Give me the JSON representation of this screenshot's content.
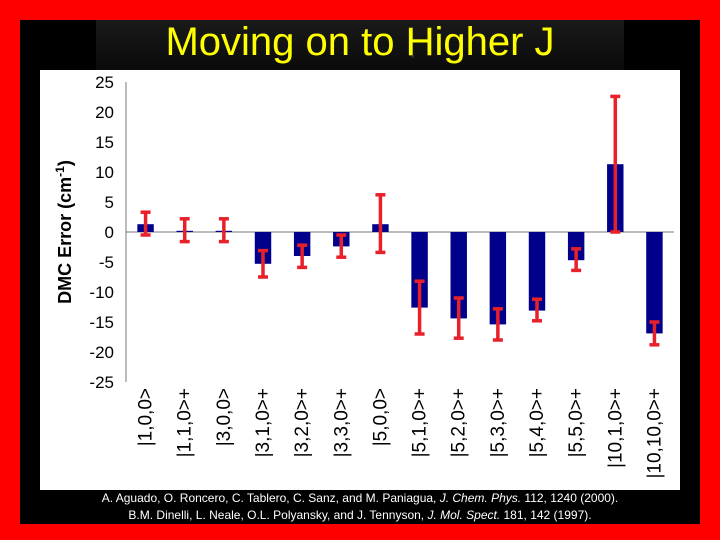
{
  "slide": {
    "title": "Moving on to Higher J",
    "citation_line1_prefix": "A. Aguado, O. Roncero, C. Tablero, C. Sanz, and M. Paniagua, ",
    "citation_line1_journal": "J. Chem. Phys.",
    "citation_line1_suffix": " 112, 1240 (2000).",
    "citation_line2_prefix": "B.M. Dinelli, L. Neale, O.L. Polyansky, and J. Tennyson, ",
    "citation_line2_journal": "J. Mol. Spect.",
    "citation_line2_suffix": " 181, 142 (1997).",
    "colors": {
      "frame": "#ff0000",
      "title": "#ffff00",
      "bar": "#00008b",
      "error_bar": "#e8202a"
    }
  },
  "chart_data": {
    "type": "bar",
    "ylabel_main": "DMC Error (cm",
    "ylabel_sup": "-1",
    "ylabel_close": ")",
    "ylim": [
      -25,
      25
    ],
    "yticks": [
      25,
      20,
      15,
      10,
      5,
      0,
      -5,
      -10,
      -15,
      -20,
      -25
    ],
    "grid": false,
    "legend": "none",
    "categories": [
      "|1,0,0>",
      "|1,1,0>+",
      "|3,0,0>",
      "|3,1,0>+",
      "|3,2,0>+",
      "|3,3,0>+",
      "|5,0,0>",
      "|5,1,0>+",
      "|5,2,0>+",
      "|5,3,0>+",
      "|5,4,0>+",
      "|5,5,0>+",
      "|10,1,0>+",
      "|10,10,0>+"
    ],
    "values": [
      1.3,
      0.2,
      0.2,
      -5.3,
      -4.0,
      -2.4,
      1.3,
      -12.6,
      -14.4,
      -15.4,
      -13.1,
      -4.7,
      11.3,
      -16.9
    ],
    "error_low": [
      -0.5,
      -1.6,
      -1.6,
      -7.5,
      -5.9,
      -4.2,
      -3.4,
      -17.0,
      -17.7,
      -18.0,
      -14.8,
      -6.4,
      0.0,
      -18.8
    ],
    "error_high": [
      3.3,
      2.2,
      2.2,
      -3.1,
      -2.2,
      -0.5,
      6.2,
      -8.2,
      -11.0,
      -12.8,
      -11.2,
      -2.8,
      22.6,
      -15.0
    ]
  }
}
